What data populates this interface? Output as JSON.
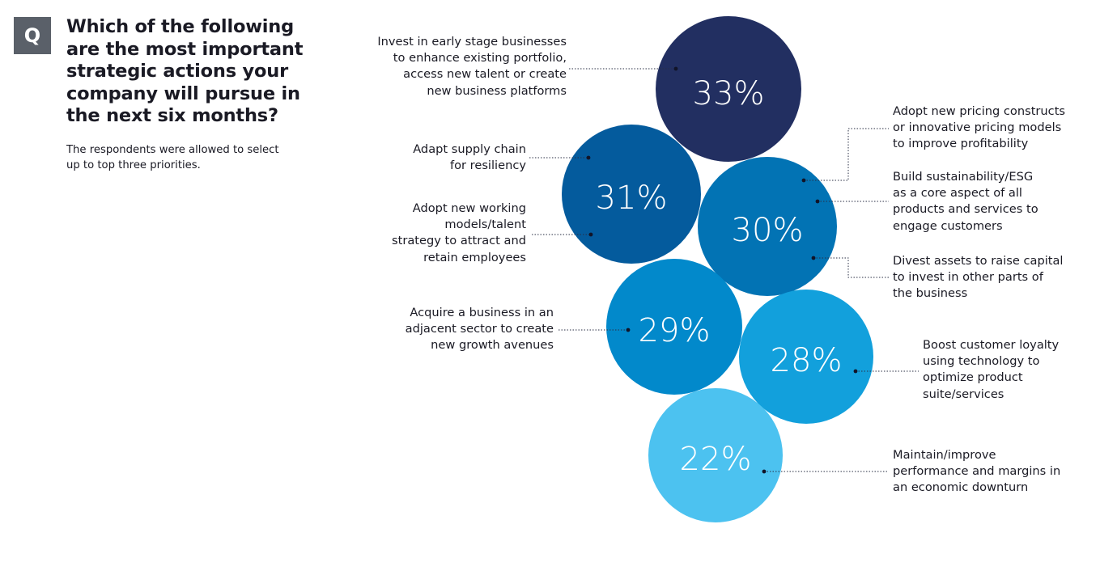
{
  "header": {
    "q_badge": "Q",
    "title_lines": [
      "Which of the following",
      "are the most important",
      "strategic actions your",
      "company will pursue in",
      "the next six months?"
    ],
    "subtitle_lines": [
      "The respondents were allowed to select",
      "up to top three priorities."
    ]
  },
  "chart_data": {
    "type": "bubble",
    "title": "Which of the following are the most important strategic actions your company will pursue in the next six months?",
    "subtitle": "The respondents were allowed to select up to top three priorities.",
    "unit": "%",
    "bubbles": [
      {
        "value": 33,
        "display": "33%",
        "color": "#222f61",
        "labels": [
          {
            "lines": [
              "Invest in early stage businesses",
              "to enhance existing portfolio,",
              "access new talent or create",
              "new business platforms"
            ]
          }
        ]
      },
      {
        "value": 31,
        "display": "31%",
        "color": "#045b9d",
        "labels": [
          {
            "lines": [
              "Adapt supply chain",
              "for resiliency"
            ]
          },
          {
            "lines": [
              "Adopt new working",
              "models/talent",
              "strategy to attract and",
              "retain employees"
            ]
          }
        ]
      },
      {
        "value": 30,
        "display": "30%",
        "color": "#0273b4",
        "labels": [
          {
            "lines": [
              "Adopt new pricing constructs",
              "or innovative pricing models",
              "to improve profitability"
            ]
          },
          {
            "lines": [
              "Build sustainability/ESG",
              "as a core aspect of all",
              "products and services to",
              "engage customers"
            ]
          },
          {
            "lines": [
              "Divest assets to raise capital",
              "to invest in other parts of",
              "the business"
            ]
          }
        ]
      },
      {
        "value": 29,
        "display": "29%",
        "color": "#0289cb",
        "labels": [
          {
            "lines": [
              "Acquire a business in an",
              "adjacent sector to create",
              "new growth avenues"
            ]
          }
        ]
      },
      {
        "value": 28,
        "display": "28%",
        "color": "#12a0dc",
        "labels": [
          {
            "lines": [
              "Boost customer loyalty",
              "using technology to",
              "optimize product",
              "suite/services"
            ]
          }
        ]
      },
      {
        "value": 22,
        "display": "22%",
        "color": "#4cc2f0",
        "labels": [
          {
            "lines": [
              "Maintain/improve",
              "performance and margins in",
              "an economic downturn"
            ]
          }
        ]
      }
    ]
  }
}
